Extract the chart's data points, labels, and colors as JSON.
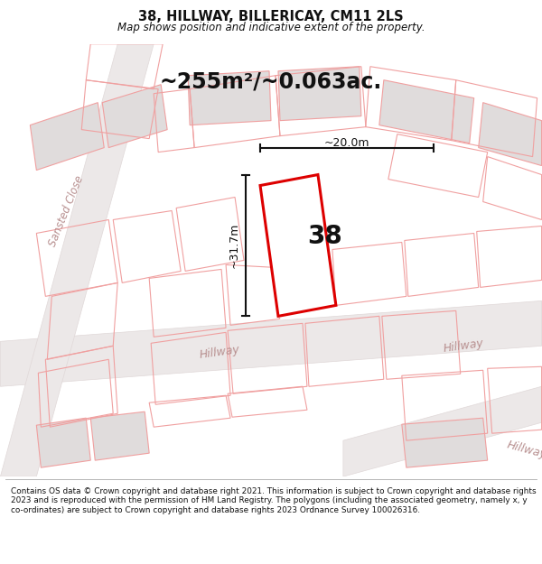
{
  "title": "38, HILLWAY, BILLERICAY, CM11 2LS",
  "subtitle": "Map shows position and indicative extent of the property.",
  "area_text": "~255m²/~0.063ac.",
  "plot_number": "38",
  "dim_vertical": "~31.7m",
  "dim_horizontal": "~20.0m",
  "footer": "Contains OS data © Crown copyright and database right 2021. This information is subject to Crown copyright and database rights 2023 and is reproduced with the permission of HM Land Registry. The polygons (including the associated geometry, namely x, y co-ordinates) are subject to Crown copyright and database rights 2023 Ordnance Survey 100026316.",
  "bg_color": "#ffffff",
  "map_bg": "#f5f2f2",
  "road_fill": "#e8e4e4",
  "building_fill": "#e0dcdc",
  "line_color": "#f0a0a0",
  "highlight_color": "#dd0000",
  "highlight_fill": "#ffffff",
  "street_label_color": "#b89090",
  "title_color": "#111111",
  "footer_color": "#111111",
  "dim_arrow_color": "#111111",
  "text_color": "#111111"
}
